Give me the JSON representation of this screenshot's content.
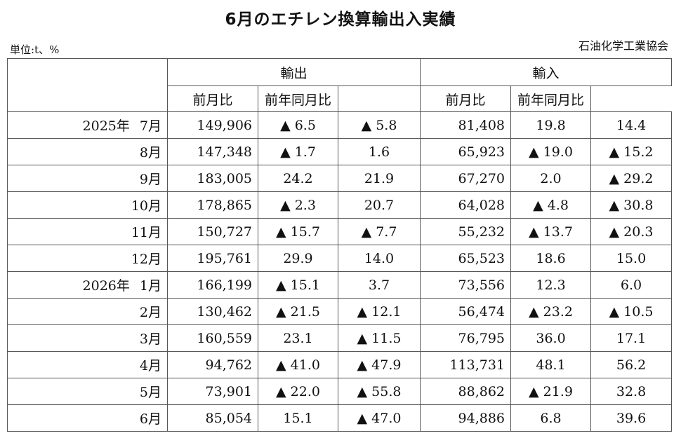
{
  "title": "6月のエチレン換算輸出入実績",
  "unit_label": "単位:t、%",
  "source": "石油化学工業協会",
  "headers": {
    "export": "輸出",
    "import": "輸入",
    "mom": "前月比",
    "yoy": "前年同月比"
  },
  "rows": [
    {
      "year": "2025年",
      "month": "7月",
      "export": "149,906",
      "ex_mom": "▲ 6.5",
      "ex_yoy": "▲ 5.8",
      "import": "81,408",
      "im_mom": "19.8",
      "im_yoy": "14.4"
    },
    {
      "year": "",
      "month": "8月",
      "export": "147,348",
      "ex_mom": "▲ 1.7",
      "ex_yoy": "1.6",
      "import": "65,923",
      "im_mom": "▲ 19.0",
      "im_yoy": "▲ 15.2"
    },
    {
      "year": "",
      "month": "9月",
      "export": "183,005",
      "ex_mom": "24.2",
      "ex_yoy": "21.9",
      "import": "67,270",
      "im_mom": "2.0",
      "im_yoy": "▲ 29.2"
    },
    {
      "year": "",
      "month": "10月",
      "export": "178,865",
      "ex_mom": "▲ 2.3",
      "ex_yoy": "20.7",
      "import": "64,028",
      "im_mom": "▲ 4.8",
      "im_yoy": "▲ 30.8"
    },
    {
      "year": "",
      "month": "11月",
      "export": "150,727",
      "ex_mom": "▲ 15.7",
      "ex_yoy": "▲ 7.7",
      "import": "55,232",
      "im_mom": "▲ 13.7",
      "im_yoy": "▲ 20.3"
    },
    {
      "year": "",
      "month": "12月",
      "export": "195,761",
      "ex_mom": "29.9",
      "ex_yoy": "14.0",
      "import": "65,523",
      "im_mom": "18.6",
      "im_yoy": "15.0"
    },
    {
      "year": "2026年",
      "month": "1月",
      "export": "166,199",
      "ex_mom": "▲ 15.1",
      "ex_yoy": "3.7",
      "import": "73,556",
      "im_mom": "12.3",
      "im_yoy": "6.0"
    },
    {
      "year": "",
      "month": "2月",
      "export": "130,462",
      "ex_mom": "▲ 21.5",
      "ex_yoy": "▲ 12.1",
      "import": "56,474",
      "im_mom": "▲ 23.2",
      "im_yoy": "▲ 10.5"
    },
    {
      "year": "",
      "month": "3月",
      "export": "160,559",
      "ex_mom": "23.1",
      "ex_yoy": "▲ 11.5",
      "import": "76,795",
      "im_mom": "36.0",
      "im_yoy": "17.1"
    },
    {
      "year": "",
      "month": "4月",
      "export": "94,762",
      "ex_mom": "▲ 41.0",
      "ex_yoy": "▲ 47.9",
      "import": "113,731",
      "im_mom": "48.1",
      "im_yoy": "56.2"
    },
    {
      "year": "",
      "month": "5月",
      "export": "73,901",
      "ex_mom": "▲ 22.0",
      "ex_yoy": "▲ 55.8",
      "import": "88,862",
      "im_mom": "▲ 21.9",
      "im_yoy": "32.8"
    },
    {
      "year": "",
      "month": "6月",
      "export": "85,054",
      "ex_mom": "15.1",
      "ex_yoy": "▲ 47.0",
      "import": "94,886",
      "im_mom": "6.8",
      "im_yoy": "39.6"
    }
  ]
}
